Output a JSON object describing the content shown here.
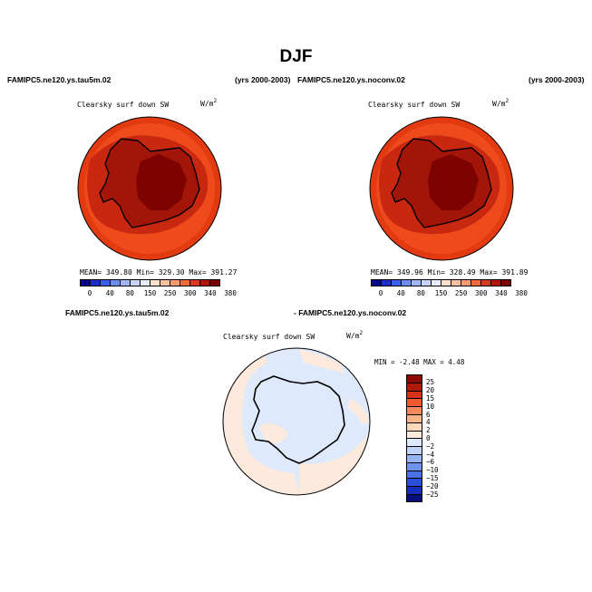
{
  "title": "DJF",
  "panel1": {
    "case": "FAMIPC5.ne120.ys.tau5m.02",
    "years": "(yrs 2000-2003)",
    "field": "Clearsky surf down SW",
    "unit_base": "W/m",
    "unit_exp": "2",
    "stats": "MEAN= 349.80  Min= 329.30  Max= 391.27"
  },
  "panel2": {
    "case": "FAMIPC5.ne120.ys.noconv.02",
    "years": "(yrs 2000-2003)",
    "field": "Clearsky surf down SW",
    "unit_base": "W/m",
    "unit_exp": "2",
    "stats": "MEAN= 349.96  Min= 328.49  Max= 391.89"
  },
  "diff": {
    "case_a": "FAMIPC5.ne120.ys.tau5m.02",
    "case_b": "- FAMIPC5.ne120.ys.noconv.02",
    "field": "Clearsky surf down SW",
    "unit_base": "W/m",
    "unit_exp": "2",
    "minmax": "MIN =   -2.48 MAX =    4.48"
  },
  "abs_colorbar": {
    "labels": [
      "0",
      "40",
      "80",
      "150",
      "250",
      "300",
      "340",
      "380"
    ],
    "colors": [
      "#08088a",
      "#1a2fc8",
      "#3a5fe8",
      "#6a8ef0",
      "#9fb8f5",
      "#c6d6f8",
      "#e6eefb",
      "#fde1cc",
      "#fcbf9c",
      "#f89a6e",
      "#f06a3e",
      "#d8391c",
      "#b01508",
      "#7a0300"
    ]
  },
  "diff_colorbar": {
    "labels": [
      "25",
      "20",
      "15",
      "10",
      "6",
      "4",
      "2",
      "0",
      "−2",
      "−4",
      "−6",
      "−10",
      "−15",
      "−20",
      "−25"
    ],
    "colors": [
      "#8c0a00",
      "#b01a08",
      "#d63418",
      "#f05a2e",
      "#f78a5a",
      "#fbb48a",
      "#fdd8bd",
      "#fdeadc",
      "#deeafb",
      "#c0d4f8",
      "#97b4f2",
      "#6f93ec",
      "#4a72e6",
      "#2b4fd8",
      "#1530b8",
      "#06107a"
    ]
  },
  "colors": {
    "ocean_abs": "#ef4a1c",
    "ring_abs": "#e33a12",
    "coast_abs": "#c82810",
    "ice_abs": "#a31409",
    "plateau_abs": "#7d0300",
    "diff_neg": "#deeafb",
    "diff_pos": "#fdeadc"
  }
}
